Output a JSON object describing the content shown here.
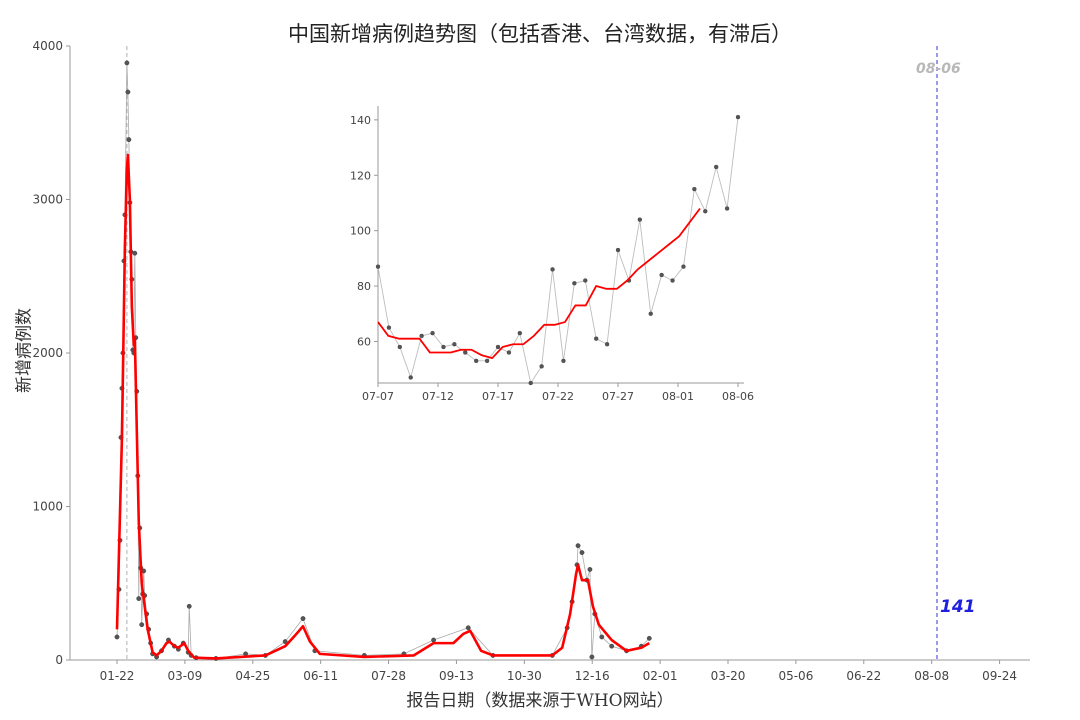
{
  "chart_data": {
    "type": "line",
    "title": "中国新增病例趋势图（包括香港、台湾数据，有滞后）",
    "xlabel": "报告日期（数据来源于WHO网站）",
    "ylabel": "新增病例数",
    "main": {
      "x_ticks": [
        "01-22",
        "03-09",
        "04-25",
        "06-11",
        "07-28",
        "09-13",
        "10-30",
        "12-16",
        "02-01",
        "03-20",
        "05-06",
        "06-22",
        "08-08",
        "09-24"
      ],
      "y_ticks": [
        0,
        1000,
        2000,
        3000,
        4000
      ],
      "ylim": [
        0,
        4000
      ],
      "end_marker_label": "08-06",
      "last_value_label": "141",
      "daily_series": [
        {
          "day": 0,
          "value": 150
        },
        {
          "day": 2,
          "value": 460
        },
        {
          "day": 3,
          "value": 780
        },
        {
          "day": 4,
          "value": 1450
        },
        {
          "day": 5,
          "value": 1770
        },
        {
          "day": 6,
          "value": 2000
        },
        {
          "day": 7,
          "value": 2600
        },
        {
          "day": 8,
          "value": 2900
        },
        {
          "day": 10,
          "value": 3890
        },
        {
          "day": 11,
          "value": 3700
        },
        {
          "day": 12,
          "value": 3390
        },
        {
          "day": 13,
          "value": 2980
        },
        {
          "day": 14,
          "value": 2660
        },
        {
          "day": 15,
          "value": 2480
        },
        {
          "day": 16,
          "value": 2020
        },
        {
          "day": 17,
          "value": 2000
        },
        {
          "day": 18,
          "value": 2650
        },
        {
          "day": 19,
          "value": 2100
        },
        {
          "day": 20,
          "value": 1750
        },
        {
          "day": 21,
          "value": 1200
        },
        {
          "day": 22,
          "value": 400
        },
        {
          "day": 23,
          "value": 860
        },
        {
          "day": 24,
          "value": 600
        },
        {
          "day": 25,
          "value": 230
        },
        {
          "day": 26,
          "value": 430
        },
        {
          "day": 27,
          "value": 580
        },
        {
          "day": 28,
          "value": 420
        },
        {
          "day": 30,
          "value": 300
        },
        {
          "day": 32,
          "value": 200
        },
        {
          "day": 34,
          "value": 110
        },
        {
          "day": 36,
          "value": 40
        },
        {
          "day": 40,
          "value": 20
        },
        {
          "day": 45,
          "value": 60
        },
        {
          "day": 52,
          "value": 130
        },
        {
          "day": 58,
          "value": 90
        },
        {
          "day": 62,
          "value": 70
        },
        {
          "day": 67,
          "value": 110
        },
        {
          "day": 72,
          "value": 50
        },
        {
          "day": 73,
          "value": 350
        },
        {
          "day": 75,
          "value": 30
        },
        {
          "day": 80,
          "value": 15
        },
        {
          "day": 100,
          "value": 10
        },
        {
          "day": 130,
          "value": 40
        },
        {
          "day": 150,
          "value": 30
        },
        {
          "day": 170,
          "value": 120
        },
        {
          "day": 188,
          "value": 270
        },
        {
          "day": 200,
          "value": 60
        },
        {
          "day": 250,
          "value": 30
        },
        {
          "day": 290,
          "value": 40
        },
        {
          "day": 320,
          "value": 130
        },
        {
          "day": 355,
          "value": 210
        },
        {
          "day": 380,
          "value": 30
        },
        {
          "day": 440,
          "value": 30
        },
        {
          "day": 455,
          "value": 210
        },
        {
          "day": 460,
          "value": 380
        },
        {
          "day": 465,
          "value": 620
        },
        {
          "day": 466,
          "value": 745
        },
        {
          "day": 470,
          "value": 700
        },
        {
          "day": 475,
          "value": 520
        },
        {
          "day": 478,
          "value": 590
        },
        {
          "day": 480,
          "value": 20
        },
        {
          "day": 483,
          "value": 300
        },
        {
          "day": 490,
          "value": 150
        },
        {
          "day": 500,
          "value": 90
        },
        {
          "day": 515,
          "value": 60
        },
        {
          "day": 530,
          "value": 90
        },
        {
          "day": 538,
          "value": 141
        }
      ],
      "smooth_series": [
        {
          "day": 0,
          "value": 200
        },
        {
          "day": 5,
          "value": 1450
        },
        {
          "day": 8,
          "value": 2700
        },
        {
          "day": 10,
          "value": 3200
        },
        {
          "day": 11,
          "value": 3290
        },
        {
          "day": 13,
          "value": 3000
        },
        {
          "day": 15,
          "value": 2300
        },
        {
          "day": 17,
          "value": 2050
        },
        {
          "day": 18,
          "value": 2100
        },
        {
          "day": 20,
          "value": 1500
        },
        {
          "day": 22,
          "value": 900
        },
        {
          "day": 25,
          "value": 500
        },
        {
          "day": 28,
          "value": 350
        },
        {
          "day": 31,
          "value": 200
        },
        {
          "day": 36,
          "value": 50
        },
        {
          "day": 40,
          "value": 30
        },
        {
          "day": 45,
          "value": 60
        },
        {
          "day": 50,
          "value": 110
        },
        {
          "day": 53,
          "value": 120
        },
        {
          "day": 58,
          "value": 90
        },
        {
          "day": 62,
          "value": 80
        },
        {
          "day": 68,
          "value": 110
        },
        {
          "day": 72,
          "value": 60
        },
        {
          "day": 78,
          "value": 15
        },
        {
          "day": 100,
          "value": 10
        },
        {
          "day": 150,
          "value": 30
        },
        {
          "day": 170,
          "value": 90
        },
        {
          "day": 180,
          "value": 160
        },
        {
          "day": 188,
          "value": 220
        },
        {
          "day": 195,
          "value": 120
        },
        {
          "day": 205,
          "value": 40
        },
        {
          "day": 250,
          "value": 20
        },
        {
          "day": 300,
          "value": 30
        },
        {
          "day": 320,
          "value": 110
        },
        {
          "day": 340,
          "value": 110
        },
        {
          "day": 350,
          "value": 170
        },
        {
          "day": 357,
          "value": 190
        },
        {
          "day": 368,
          "value": 60
        },
        {
          "day": 380,
          "value": 30
        },
        {
          "day": 440,
          "value": 30
        },
        {
          "day": 450,
          "value": 80
        },
        {
          "day": 458,
          "value": 300
        },
        {
          "day": 464,
          "value": 560
        },
        {
          "day": 466,
          "value": 620
        },
        {
          "day": 470,
          "value": 520
        },
        {
          "day": 476,
          "value": 520
        },
        {
          "day": 481,
          "value": 350
        },
        {
          "day": 487,
          "value": 230
        },
        {
          "day": 500,
          "value": 130
        },
        {
          "day": 515,
          "value": 60
        },
        {
          "day": 530,
          "value": 80
        },
        {
          "day": 538,
          "value": 110
        }
      ]
    },
    "inset": {
      "x_ticks": [
        "07-07",
        "07-12",
        "07-17",
        "07-22",
        "07-27",
        "08-01",
        "08-06"
      ],
      "y_ticks": [
        60,
        80,
        100,
        120,
        140
      ],
      "ylim": [
        45,
        145
      ],
      "daily_values": [
        87,
        65,
        58,
        47,
        62,
        63,
        58,
        59,
        56,
        53,
        53,
        58,
        56,
        63,
        45,
        51,
        86,
        53,
        81,
        82,
        61,
        59,
        93,
        82,
        104,
        70,
        84,
        82,
        87,
        115,
        107,
        123,
        108,
        141
      ],
      "smooth_values": [
        67,
        62,
        61,
        61,
        61,
        56,
        56,
        56,
        57,
        57,
        55,
        54,
        58,
        59,
        59,
        62,
        66,
        66,
        67,
        73,
        73,
        80,
        79,
        79,
        82,
        86,
        89,
        92,
        95,
        98,
        103,
        108
      ]
    },
    "colors": {
      "daily": "#555555",
      "smooth": "#ff0000",
      "end_marker": "#3333dd",
      "peak_marker": "#b0b0b0",
      "last_value": "#1f1fe0",
      "end_label": "#b8b8b8"
    }
  }
}
